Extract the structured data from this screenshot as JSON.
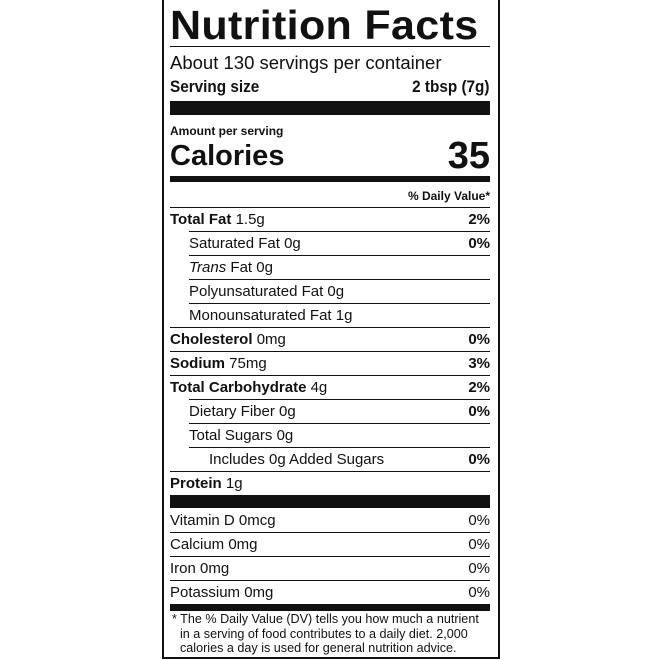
{
  "title": "Nutrition Facts",
  "servings_per_container": "About 130 servings per container",
  "serving_size_label": "Serving size",
  "serving_size_value": "2 tbsp (7g)",
  "amount_per_serving": "Amount per serving",
  "calories_label": "Calories",
  "calories_value": "35",
  "daily_value_header": "% Daily Value*",
  "nutrients": [
    {
      "name": "Total Fat",
      "amount": "1.5g",
      "dv": "2%"
    },
    {
      "name": "Saturated Fat",
      "amount": "0g",
      "dv": "0%"
    },
    {
      "name": "Trans",
      "amount": "Fat 0g",
      "dv": ""
    },
    {
      "name": "Polyunsaturated Fat",
      "amount": "0g",
      "dv": ""
    },
    {
      "name": "Monounsaturated Fat",
      "amount": "1g",
      "dv": ""
    },
    {
      "name": "Cholesterol",
      "amount": "0mg",
      "dv": "0%"
    },
    {
      "name": "Sodium",
      "amount": "75mg",
      "dv": "3%"
    },
    {
      "name": "Total Carbohydrate",
      "amount": "4g",
      "dv": "2%"
    },
    {
      "name": "Dietary Fiber",
      "amount": "0g",
      "dv": "0%"
    },
    {
      "name": "Total Sugars",
      "amount": "0g",
      "dv": ""
    },
    {
      "name": "Includes 0g Added Sugars",
      "amount": "",
      "dv": "0%"
    },
    {
      "name": "Protein",
      "amount": "1g",
      "dv": ""
    }
  ],
  "vitamins": [
    {
      "name": "Vitamin D 0mcg",
      "dv": "0%"
    },
    {
      "name": "Calcium 0mg",
      "dv": "0%"
    },
    {
      "name": "Iron 0mg",
      "dv": "0%"
    },
    {
      "name": "Potassium 0mg",
      "dv": "0%"
    }
  ],
  "footnote": "* The % Daily Value (DV) tells you how much a nutrient in a serving of food contributes to a daily diet. 2,000 calories a day is used for general nutrition advice."
}
